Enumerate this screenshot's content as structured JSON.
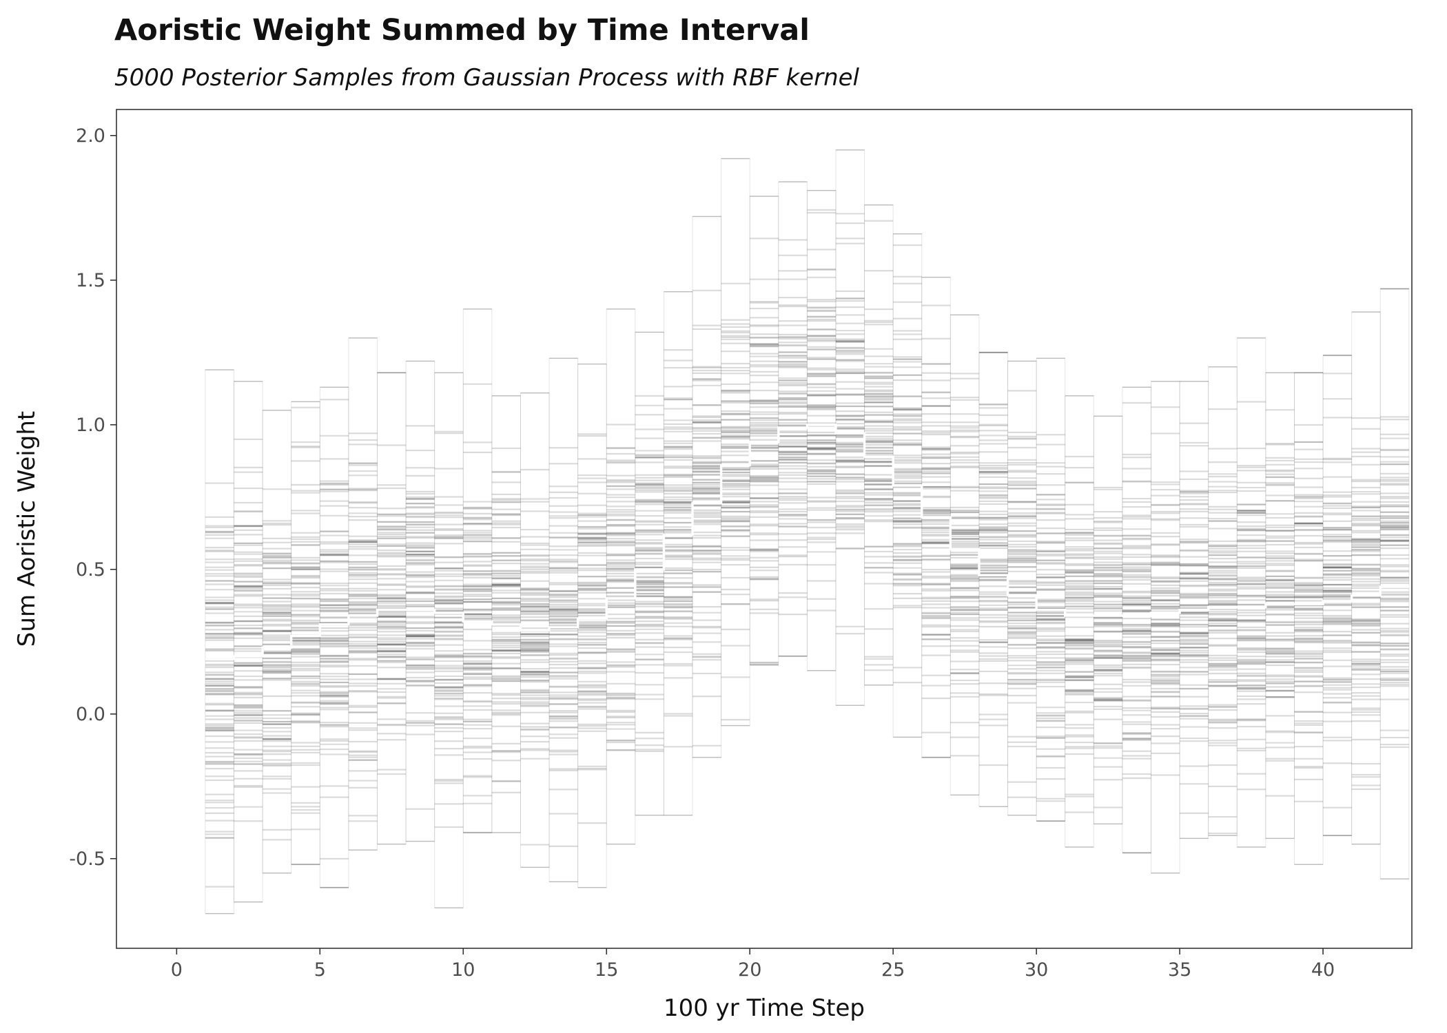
{
  "chart_data": {
    "type": "line",
    "title": "Aoristic Weight Summed by Time Interval",
    "subtitle": "5000 Posterior Samples from Gaussian Process with RBF kernel",
    "xlabel": "100 yr Time Step",
    "ylabel": "Sum Aoristic Weight",
    "xlim": [
      -2.1,
      43.1
    ],
    "ylim": [
      -0.81,
      2.09
    ],
    "x_ticks": [
      0,
      5,
      10,
      15,
      20,
      25,
      30,
      35,
      40
    ],
    "x_tick_labels": [
      "0",
      "5",
      "10",
      "15",
      "20",
      "25",
      "30",
      "35",
      "40"
    ],
    "y_ticks": [
      -0.5,
      0.0,
      0.5,
      1.0,
      1.5,
      2.0
    ],
    "y_tick_labels": [
      "-0.5",
      "0.0",
      "0.5",
      "1.0",
      "1.5",
      "2.0"
    ],
    "grid": false,
    "legend": "none",
    "samples_drawn_as": "translucent black horizontal step segments, one per posterior sample per interval",
    "series": [
      {
        "style": "step",
        "color": "#ffffff",
        "x": [
          1,
          2,
          3,
          4,
          5,
          6,
          7,
          8,
          9,
          10,
          11,
          12,
          13,
          14,
          15,
          16,
          17,
          18,
          19,
          20,
          21,
          22,
          23,
          24,
          25,
          26,
          27,
          28,
          29,
          30,
          31,
          32,
          33,
          34,
          35,
          36,
          37,
          38,
          39,
          40,
          41,
          42
        ],
        "values": [
          0.19,
          0.2,
          0.23,
          0.27,
          0.31,
          0.34,
          0.36,
          0.36,
          0.35,
          0.32,
          0.31,
          0.29,
          0.3,
          0.33,
          0.4,
          0.5,
          0.62,
          0.73,
          0.86,
          0.94,
          0.99,
          1.0,
          0.97,
          0.89,
          0.79,
          0.68,
          0.57,
          0.48,
          0.41,
          0.36,
          0.34,
          0.34,
          0.34,
          0.35,
          0.36,
          0.37,
          0.37,
          0.38,
          0.38,
          0.39,
          0.41,
          0.44
        ]
      }
    ],
    "interval_spread": {
      "x": [
        1,
        2,
        3,
        4,
        5,
        6,
        7,
        8,
        9,
        10,
        11,
        12,
        13,
        14,
        15,
        16,
        17,
        18,
        19,
        20,
        21,
        22,
        23,
        24,
        25,
        26,
        27,
        28,
        29,
        30,
        31,
        32,
        33,
        34,
        35,
        36,
        37,
        38,
        39,
        40,
        41,
        42
      ],
      "min": [
        -0.69,
        -0.65,
        -0.55,
        -0.52,
        -0.6,
        -0.47,
        -0.45,
        -0.44,
        -0.67,
        -0.41,
        -0.41,
        -0.53,
        -0.58,
        -0.6,
        -0.45,
        -0.35,
        -0.35,
        -0.15,
        -0.04,
        0.17,
        0.2,
        0.15,
        0.03,
        0.1,
        -0.08,
        -0.15,
        -0.28,
        -0.32,
        -0.35,
        -0.37,
        -0.46,
        -0.38,
        -0.48,
        -0.55,
        -0.43,
        -0.42,
        -0.46,
        -0.43,
        -0.52,
        -0.42,
        -0.45,
        -0.57
      ],
      "max": [
        1.19,
        1.15,
        1.05,
        1.08,
        1.13,
        1.3,
        1.18,
        1.22,
        1.18,
        1.4,
        1.1,
        1.11,
        1.23,
        1.21,
        1.4,
        1.32,
        1.46,
        1.72,
        1.92,
        1.79,
        1.84,
        1.81,
        1.95,
        1.76,
        1.66,
        1.51,
        1.38,
        1.25,
        1.22,
        1.23,
        1.1,
        1.03,
        1.13,
        1.15,
        1.15,
        1.2,
        1.3,
        1.18,
        1.18,
        1.24,
        1.39,
        1.47
      ],
      "sd": [
        0.3,
        0.3,
        0.29,
        0.29,
        0.28,
        0.27,
        0.27,
        0.26,
        0.26,
        0.26,
        0.26,
        0.26,
        0.26,
        0.27,
        0.27,
        0.28,
        0.28,
        0.28,
        0.28,
        0.27,
        0.27,
        0.27,
        0.28,
        0.28,
        0.28,
        0.28,
        0.28,
        0.28,
        0.27,
        0.27,
        0.26,
        0.26,
        0.26,
        0.26,
        0.26,
        0.26,
        0.26,
        0.27,
        0.27,
        0.28,
        0.29,
        0.3
      ]
    }
  }
}
